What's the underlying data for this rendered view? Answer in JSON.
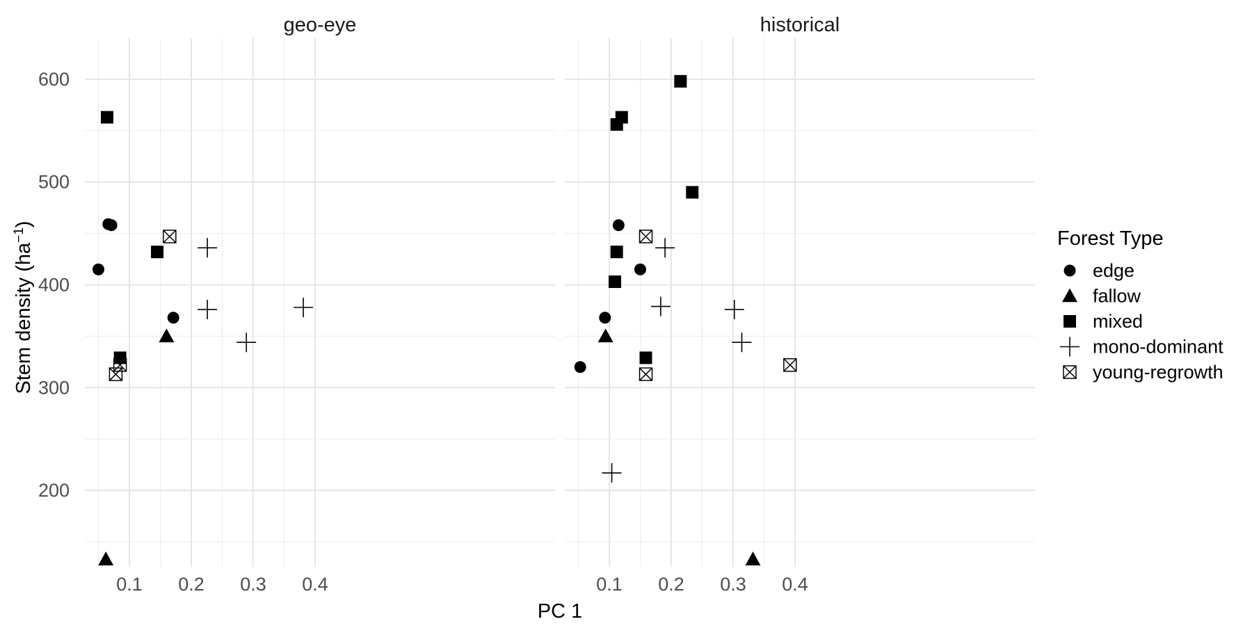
{
  "chart_data": {
    "type": "scatter",
    "xlabel": "PC 1",
    "ylabel": "Stem density (ha",
    "ylabel_sup": "−1",
    "ylabel_close": ")",
    "xlim": [
      0.0,
      0.4
    ],
    "ylim": [
      110,
      620
    ],
    "x_ticks": [
      0.1,
      0.2,
      0.3,
      0.4
    ],
    "x_tick_labels": [
      "0.1",
      "0.2",
      "0.3",
      "0.4"
    ],
    "y_ticks": [
      200,
      300,
      400,
      500,
      600
    ],
    "y_tick_labels": [
      "200",
      "300",
      "400",
      "500",
      "600"
    ],
    "grid": true,
    "legend": {
      "title": "Forest Type",
      "position": "right",
      "entries": [
        {
          "label": "edge",
          "shape": "circle"
        },
        {
          "label": "fallow",
          "shape": "triangle"
        },
        {
          "label": "mixed",
          "shape": "square"
        },
        {
          "label": "mono-dominant",
          "shape": "plus"
        },
        {
          "label": "young-regrowth",
          "shape": "boxx"
        }
      ]
    },
    "panels": [
      {
        "title": "geo-eye",
        "points": [
          {
            "type": "edge",
            "x": 0.05,
            "y": 415
          },
          {
            "type": "edge",
            "x": 0.066,
            "y": 459
          },
          {
            "type": "edge",
            "x": 0.071,
            "y": 458
          },
          {
            "type": "edge",
            "x": 0.171,
            "y": 368
          },
          {
            "type": "fallow",
            "x": 0.062,
            "y": 133
          },
          {
            "type": "fallow",
            "x": 0.16,
            "y": 350
          },
          {
            "type": "mixed",
            "x": 0.064,
            "y": 563
          },
          {
            "type": "mixed",
            "x": 0.145,
            "y": 432
          },
          {
            "type": "mixed",
            "x": 0.085,
            "y": 329
          },
          {
            "type": "mono-dominant",
            "x": 0.226,
            "y": 436
          },
          {
            "type": "mono-dominant",
            "x": 0.226,
            "y": 376
          },
          {
            "type": "mono-dominant",
            "x": 0.289,
            "y": 344
          },
          {
            "type": "mono-dominant",
            "x": 0.381,
            "y": 378
          },
          {
            "type": "young-regrowth",
            "x": 0.165,
            "y": 447
          },
          {
            "type": "young-regrowth",
            "x": 0.085,
            "y": 322
          },
          {
            "type": "young-regrowth",
            "x": 0.078,
            "y": 313
          }
        ]
      },
      {
        "title": "historical",
        "points": [
          {
            "type": "edge",
            "x": 0.115,
            "y": 458
          },
          {
            "type": "edge",
            "x": 0.15,
            "y": 415
          },
          {
            "type": "edge",
            "x": 0.093,
            "y": 368
          },
          {
            "type": "edge",
            "x": 0.053,
            "y": 320
          },
          {
            "type": "fallow",
            "x": 0.094,
            "y": 350
          },
          {
            "type": "fallow",
            "x": 0.332,
            "y": 133
          },
          {
            "type": "mixed",
            "x": 0.215,
            "y": 598
          },
          {
            "type": "mixed",
            "x": 0.112,
            "y": 556
          },
          {
            "type": "mixed",
            "x": 0.12,
            "y": 563
          },
          {
            "type": "mixed",
            "x": 0.234,
            "y": 490
          },
          {
            "type": "mixed",
            "x": 0.112,
            "y": 432
          },
          {
            "type": "mixed",
            "x": 0.109,
            "y": 403
          },
          {
            "type": "mixed",
            "x": 0.159,
            "y": 329
          },
          {
            "type": "mono-dominant",
            "x": 0.19,
            "y": 436
          },
          {
            "type": "mono-dominant",
            "x": 0.183,
            "y": 379
          },
          {
            "type": "mono-dominant",
            "x": 0.302,
            "y": 376
          },
          {
            "type": "mono-dominant",
            "x": 0.314,
            "y": 344
          },
          {
            "type": "mono-dominant",
            "x": 0.104,
            "y": 217
          },
          {
            "type": "young-regrowth",
            "x": 0.159,
            "y": 447
          },
          {
            "type": "young-regrowth",
            "x": 0.159,
            "y": 313
          },
          {
            "type": "young-regrowth",
            "x": 0.392,
            "y": 322
          }
        ]
      }
    ]
  }
}
